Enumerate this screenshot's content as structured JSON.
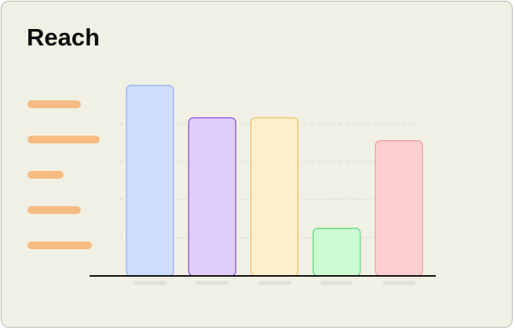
{
  "card": {
    "title": "Reach"
  },
  "chart_data": {
    "type": "bar",
    "title": "Reach",
    "categories": [
      "",
      "",
      "",
      "",
      ""
    ],
    "values": [
      100,
      83,
      83,
      25,
      71
    ],
    "ylim": [
      0,
      100
    ],
    "grid": true,
    "legend": "left",
    "legend_entries": 5,
    "axis_labels_visible": false,
    "colors": {
      "fills": [
        "#cfdefb",
        "#e0cdfb",
        "#fdefcd",
        "#cdfbd4",
        "#fdcece"
      ],
      "strokes": [
        "#7f9ff0",
        "#6b2fd1",
        "#f0b43c",
        "#3ad25a",
        "#ef8d8d"
      ],
      "legend_placeholder": "#f6bb82",
      "tick_placeholder": "#dfdfdc",
      "grid": "#dedcd0",
      "axis": "#111111",
      "background": "#f1f0e4"
    }
  }
}
